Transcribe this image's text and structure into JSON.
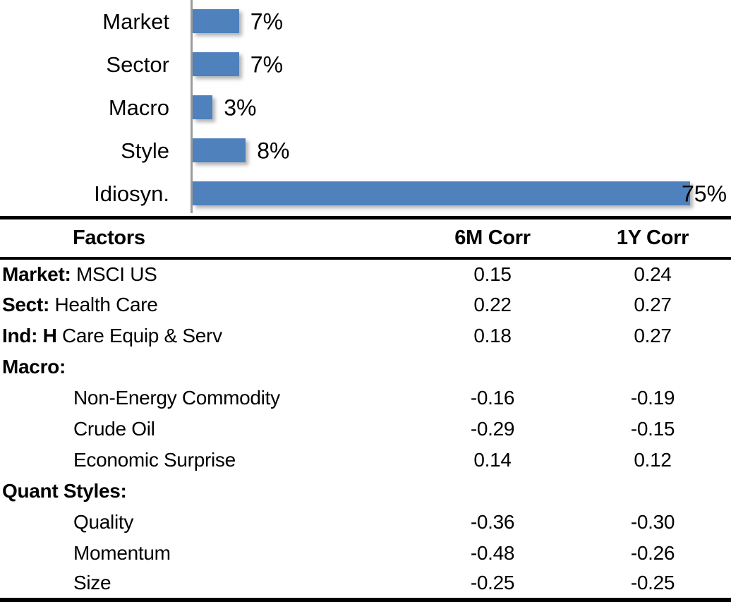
{
  "colors": {
    "bar": "#4F81BD",
    "axis": "#9B9B9B",
    "text": "#000000",
    "background": "#FFFFFF",
    "table_border": "#000000"
  },
  "chart_data": [
    {
      "type": "bar",
      "orientation": "horizontal",
      "categories": [
        "Market",
        "Sector",
        "Macro",
        "Style",
        "Idiosyn."
      ],
      "values": [
        7,
        7,
        3,
        8,
        75
      ],
      "value_labels": [
        "7%",
        "7%",
        "3%",
        "8%",
        "75%"
      ],
      "unit": "percent",
      "xlim": [
        0,
        80
      ],
      "grid": false,
      "legend": false,
      "value_label_position": "outside-end",
      "bar_color": "#4F81BD",
      "axis_color": "#9B9B9B"
    },
    {
      "type": "table",
      "headers": [
        "Factors",
        "6M Corr",
        "1Y Corr"
      ],
      "rows": [
        {
          "prefix": "Market:",
          "label": "MSCI US",
          "indent": false,
          "corr_6m": "0.15",
          "corr_1y": "0.24"
        },
        {
          "prefix": "Sect:",
          "label": "Health Care",
          "indent": false,
          "corr_6m": "0.22",
          "corr_1y": "0.27"
        },
        {
          "prefix": "Ind: H",
          "label": "Care Equip & Serv",
          "indent": false,
          "corr_6m": "0.18",
          "corr_1y": "0.27"
        },
        {
          "prefix": "Macro:",
          "label": "",
          "indent": false,
          "corr_6m": "",
          "corr_1y": ""
        },
        {
          "prefix": "",
          "label": "Non-Energy Commodity",
          "indent": true,
          "corr_6m": "-0.16",
          "corr_1y": "-0.19"
        },
        {
          "prefix": "",
          "label": "Crude Oil",
          "indent": true,
          "corr_6m": "-0.29",
          "corr_1y": "-0.15"
        },
        {
          "prefix": "",
          "label": "Economic Surprise",
          "indent": true,
          "corr_6m": "0.14",
          "corr_1y": "0.12"
        },
        {
          "prefix": "Quant Styles:",
          "label": "",
          "indent": false,
          "corr_6m": "",
          "corr_1y": ""
        },
        {
          "prefix": "",
          "label": "Quality",
          "indent": true,
          "corr_6m": "-0.36",
          "corr_1y": "-0.30"
        },
        {
          "prefix": "",
          "label": "Momentum",
          "indent": true,
          "corr_6m": "-0.48",
          "corr_1y": "-0.26"
        },
        {
          "prefix": "",
          "label": "Size",
          "indent": true,
          "corr_6m": "-0.25",
          "corr_1y": "-0.25"
        }
      ]
    }
  ]
}
